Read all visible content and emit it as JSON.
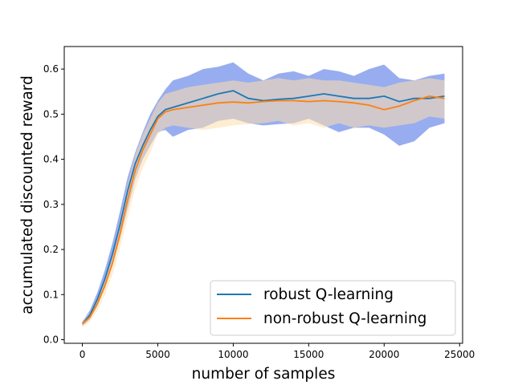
{
  "chart_data": {
    "type": "line",
    "title": "",
    "xlabel": "number of samples",
    "ylabel": "accumulated discounted reward",
    "xlim": [
      -1200,
      25200
    ],
    "ylim": [
      -0.008,
      0.65
    ],
    "xticks": [
      0,
      5000,
      10000,
      15000,
      20000,
      25000
    ],
    "yticks": [
      0.0,
      0.1,
      0.2,
      0.3,
      0.4,
      0.5,
      0.6
    ],
    "xtick_labels": [
      "0",
      "5000",
      "10000",
      "15000",
      "20000",
      "25000"
    ],
    "ytick_labels": [
      "0.0",
      "0.1",
      "0.2",
      "0.3",
      "0.4",
      "0.5",
      "0.6"
    ],
    "legend_position": "lower-right",
    "grid": false,
    "series": [
      {
        "name": "robust Q-learning",
        "color": "#1f77b4",
        "band_color": "#4169e1",
        "x": [
          0,
          500,
          1000,
          1500,
          2000,
          2500,
          3000,
          3500,
          4000,
          4500,
          5000,
          5500,
          6000,
          7000,
          8000,
          9000,
          10000,
          11000,
          12000,
          13000,
          14000,
          15000,
          16000,
          17000,
          18000,
          19000,
          20000,
          21000,
          22000,
          23000,
          24000
        ],
        "y": [
          0.035,
          0.055,
          0.09,
          0.135,
          0.19,
          0.255,
          0.33,
          0.39,
          0.43,
          0.465,
          0.495,
          0.51,
          0.515,
          0.525,
          0.535,
          0.545,
          0.552,
          0.535,
          0.53,
          0.533,
          0.535,
          0.54,
          0.545,
          0.54,
          0.535,
          0.535,
          0.54,
          0.528,
          0.535,
          0.535,
          0.54
        ],
        "lower": [
          0.03,
          0.045,
          0.075,
          0.115,
          0.165,
          0.225,
          0.29,
          0.355,
          0.4,
          0.43,
          0.46,
          0.465,
          0.45,
          0.465,
          0.47,
          0.485,
          0.49,
          0.48,
          0.475,
          0.478,
          0.48,
          0.49,
          0.475,
          0.46,
          0.47,
          0.47,
          0.455,
          0.43,
          0.44,
          0.47,
          0.48
        ],
        "upper": [
          0.04,
          0.065,
          0.105,
          0.155,
          0.215,
          0.285,
          0.36,
          0.415,
          0.46,
          0.5,
          0.53,
          0.555,
          0.575,
          0.585,
          0.6,
          0.605,
          0.615,
          0.59,
          0.575,
          0.59,
          0.595,
          0.585,
          0.6,
          0.595,
          0.585,
          0.6,
          0.61,
          0.58,
          0.575,
          0.585,
          0.59
        ]
      },
      {
        "name": "non-robust Q-learning",
        "color": "#ff7f0e",
        "band_color": "#ffdead",
        "x": [
          0,
          500,
          1000,
          1500,
          2000,
          2500,
          3000,
          3500,
          4000,
          4500,
          5000,
          5500,
          6000,
          7000,
          8000,
          9000,
          10000,
          11000,
          12000,
          13000,
          14000,
          15000,
          16000,
          17000,
          18000,
          19000,
          20000,
          21000,
          22000,
          23000,
          24000
        ],
        "y": [
          0.035,
          0.05,
          0.08,
          0.12,
          0.17,
          0.235,
          0.31,
          0.375,
          0.42,
          0.455,
          0.49,
          0.505,
          0.51,
          0.515,
          0.52,
          0.525,
          0.527,
          0.525,
          0.528,
          0.53,
          0.53,
          0.528,
          0.53,
          0.528,
          0.525,
          0.52,
          0.51,
          0.518,
          0.53,
          0.54,
          0.535
        ],
        "lower": [
          0.028,
          0.04,
          0.065,
          0.1,
          0.145,
          0.205,
          0.27,
          0.335,
          0.38,
          0.415,
          0.455,
          0.47,
          0.475,
          0.47,
          0.465,
          0.47,
          0.475,
          0.478,
          0.48,
          0.485,
          0.475,
          0.48,
          0.47,
          0.48,
          0.47,
          0.475,
          0.47,
          0.475,
          0.48,
          0.495,
          0.49
        ],
        "upper": [
          0.042,
          0.06,
          0.095,
          0.14,
          0.195,
          0.265,
          0.345,
          0.41,
          0.455,
          0.49,
          0.525,
          0.545,
          0.55,
          0.56,
          0.565,
          0.57,
          0.575,
          0.57,
          0.575,
          0.58,
          0.575,
          0.58,
          0.575,
          0.575,
          0.57,
          0.565,
          0.56,
          0.57,
          0.575,
          0.58,
          0.575
        ]
      }
    ]
  }
}
